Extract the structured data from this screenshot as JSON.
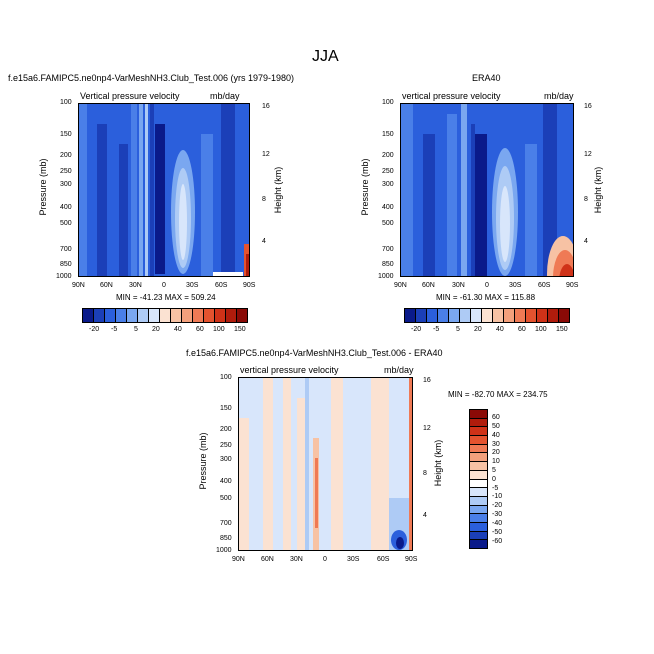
{
  "figure": {
    "title": "JJA"
  },
  "panels": [
    {
      "id": "model",
      "heading": "f.e15a6.FAMIPC5.ne0np4-VarMeshNH3.Club_Test.006 (yrs 1979-1980)",
      "variable": "Vertical pressure velocity",
      "units": "mb/day",
      "stats": "MIN = -41.23  MAX = 509.24"
    },
    {
      "id": "era40",
      "heading": "ERA40",
      "variable": "vertical pressure velocity",
      "units": "mb/day",
      "stats": "MIN = -61.30  MAX = 115.88"
    },
    {
      "id": "diff",
      "heading": "f.e15a6.FAMIPC5.ne0np4-VarMeshNH3.Club_Test.006 - ERA40",
      "variable": "vertical pressure velocity",
      "units": "mb/day",
      "stats": "MIN = -82.70  MAX = 234.75"
    }
  ],
  "axes": {
    "ylabel": "Pressure (mb)",
    "y2label": "Height (km)",
    "pressure_ticks": [
      "100",
      "150",
      "200",
      "250",
      "300",
      "400",
      "500",
      "700",
      "850",
      "1000"
    ],
    "height_ticks": [
      "16",
      "12",
      "8",
      "4"
    ],
    "lat_ticks": [
      "90N",
      "60N",
      "30N",
      "0",
      "30S",
      "60S",
      "90S"
    ]
  },
  "legend_top": {
    "labels": [
      "-20",
      "-5",
      "5",
      "20",
      "40",
      "60",
      "100",
      "150"
    ],
    "colors": [
      "#0a1a8a",
      "#1b3fb8",
      "#2b5fdc",
      "#4a7fe8",
      "#7aa7f0",
      "#aecbf5",
      "#d8e6fb",
      "#fbe2d2",
      "#f7c2a4",
      "#f3a07c",
      "#ef7a55",
      "#e4532f",
      "#cf3218",
      "#b01c0c",
      "#8a0a06"
    ]
  },
  "legend_diff": {
    "labels": [
      "60",
      "50",
      "40",
      "30",
      "20",
      "10",
      "5",
      "0",
      "-5",
      "-10",
      "-20",
      "-30",
      "-40",
      "-50",
      "-60"
    ],
    "colors": [
      "#8a0a06",
      "#b01c0c",
      "#cf3218",
      "#e4532f",
      "#ef7a55",
      "#f3a07c",
      "#f7c2a4",
      "#fbe2d2",
      "#ffffff",
      "#d8e6fb",
      "#aecbf5",
      "#7aa7f0",
      "#4a7fe8",
      "#2b5fdc",
      "#1b3fb8",
      "#0a1a8a"
    ]
  },
  "chart_data": [
    {
      "type": "heatmap",
      "title": "f.e15a6.FAMIPC5.ne0np4-VarMeshNH3.Club_Test.006 (yrs 1979-1980)",
      "xlabel": "",
      "ylabel": "Pressure (mb)",
      "x_ticks": [
        "90N",
        "60N",
        "30N",
        "0",
        "30S",
        "60S",
        "90S"
      ],
      "y_ticks": [
        100,
        150,
        200,
        250,
        300,
        400,
        500,
        700,
        850,
        1000
      ],
      "min": -41.23,
      "max": 509.24
    },
    {
      "type": "heatmap",
      "title": "ERA40",
      "xlabel": "",
      "ylabel": "Pressure (mb)",
      "x_ticks": [
        "90N",
        "60N",
        "30N",
        "0",
        "30S",
        "60S",
        "90S"
      ],
      "y_ticks": [
        100,
        150,
        200,
        250,
        300,
        400,
        500,
        700,
        850,
        1000
      ],
      "min": -61.3,
      "max": 115.88
    },
    {
      "type": "heatmap",
      "title": "f.e15a6.FAMIPC5.ne0np4-VarMeshNH3.Club_Test.006 - ERA40",
      "xlabel": "",
      "ylabel": "Pressure (mb)",
      "x_ticks": [
        "90N",
        "60N",
        "30N",
        "0",
        "30S",
        "60S",
        "90S"
      ],
      "y_ticks": [
        100,
        150,
        200,
        250,
        300,
        400,
        500,
        700,
        850,
        1000
      ],
      "min": -82.7,
      "max": 234.75
    }
  ]
}
